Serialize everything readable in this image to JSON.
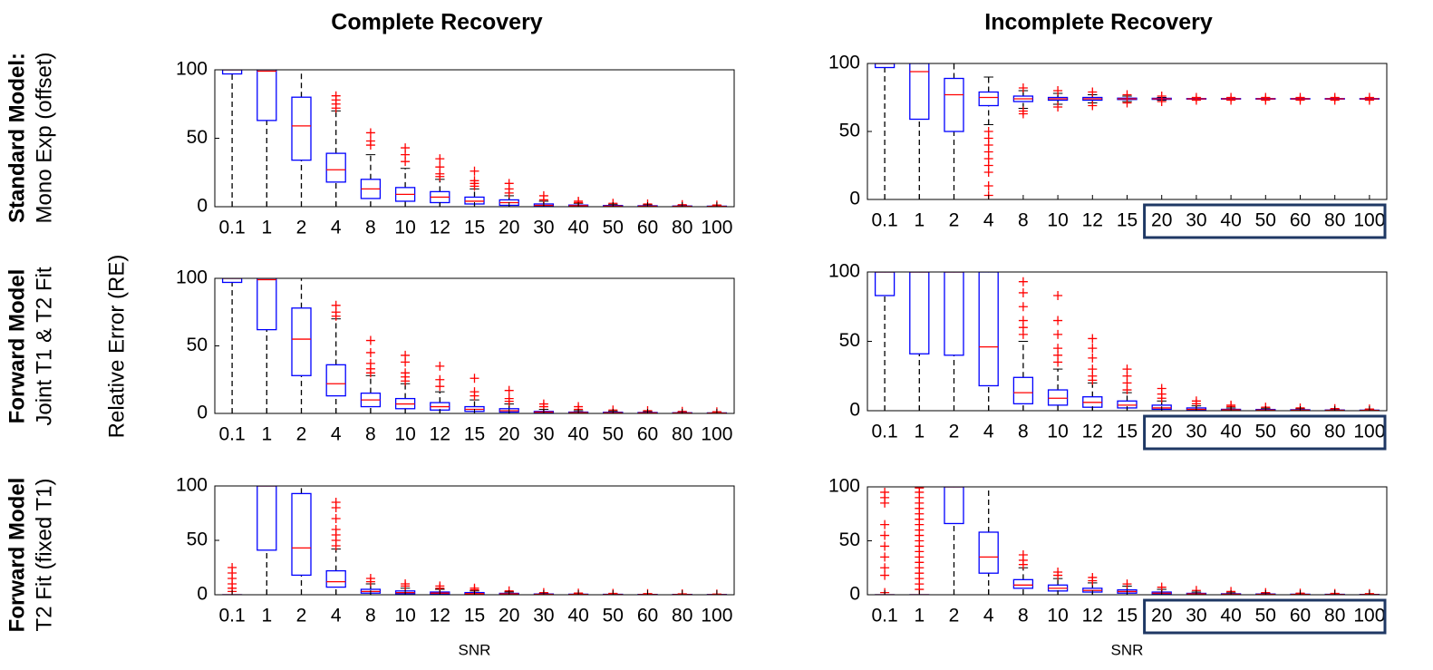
{
  "figure": {
    "column_titles": [
      "Complete Recovery",
      "Incomplete Recovery"
    ],
    "row_labels": [
      [
        "Standard Model:",
        "Mono Exp (offset)"
      ],
      [
        "Forward Model",
        "Joint T1 & T2 Fit"
      ],
      [
        "Forward Model",
        "T2 Fit (fixed T1)"
      ]
    ],
    "ylabel": "Relative Error (RE)"
  },
  "chart_data": [
    {
      "type": "box",
      "categories": [
        "0.1",
        "1",
        "2",
        "4",
        "8",
        "10",
        "12",
        "15",
        "20",
        "30",
        "40",
        "50",
        "60",
        "80",
        "100"
      ],
      "ylim": [
        0,
        100
      ],
      "yticks": [
        0,
        50,
        100
      ],
      "box_color": "#0000ff",
      "median_color": "#ff0000",
      "flier_color": "#ff0000",
      "whislo": [
        0,
        0,
        0,
        0,
        0,
        0,
        0,
        0,
        0,
        0,
        0,
        0,
        0,
        0,
        0
      ],
      "q1": [
        97,
        63,
        34,
        18,
        6,
        4,
        3,
        2,
        1,
        0.5,
        0.3,
        0.2,
        0.2,
        0.1,
        0.1
      ],
      "median": [
        100,
        99,
        59,
        27,
        13,
        9,
        7,
        4,
        3,
        1,
        0.7,
        0.5,
        0.4,
        0.3,
        0.2
      ],
      "q3": [
        100,
        100,
        80,
        39,
        20,
        14,
        11,
        7,
        5,
        2,
        1.2,
        0.9,
        0.7,
        0.5,
        0.4
      ],
      "whishi": [
        100,
        100,
        100,
        70,
        38,
        28,
        20,
        13,
        8,
        4,
        2.5,
        1.8,
        1.4,
        1,
        0.8
      ],
      "fliers": [
        [],
        [],
        [],
        [
          72,
          75,
          78,
          81
        ],
        [
          45,
          48,
          54
        ],
        [
          33,
          38,
          43
        ],
        [
          22,
          24,
          29,
          35
        ],
        [
          15,
          17,
          19,
          26
        ],
        [
          10,
          13,
          17
        ],
        [
          5,
          8
        ],
        [
          3,
          4
        ],
        [
          2.5
        ],
        [
          2
        ],
        [
          1.5
        ],
        [
          1.2
        ]
      ]
    },
    {
      "type": "box",
      "categories": [
        "0.1",
        "1",
        "2",
        "4",
        "8",
        "10",
        "12",
        "15",
        "20",
        "30",
        "40",
        "50",
        "60",
        "80",
        "100"
      ],
      "ylim": [
        0,
        100
      ],
      "yticks": [
        0,
        50,
        100
      ],
      "box_color": "#0000ff",
      "median_color": "#ff0000",
      "flier_color": "#ff0000",
      "highlight": {
        "from": "20",
        "to": "100",
        "color": "#1f3864"
      },
      "whislo": [
        0,
        0,
        0,
        55,
        67,
        70,
        71,
        72,
        73,
        73.5,
        73.5,
        73.5,
        73.5,
        73.5,
        73.5
      ],
      "q1": [
        97,
        59,
        50,
        69,
        72,
        73,
        73,
        73.5,
        73.6,
        73.8,
        73.8,
        73.8,
        73.8,
        73.8,
        73.8
      ],
      "median": [
        100,
        94,
        77,
        75,
        74,
        74,
        74,
        74,
        74,
        74,
        74,
        74,
        74,
        74,
        74
      ],
      "q3": [
        100,
        100,
        89,
        79,
        76,
        75,
        75,
        74.5,
        74.4,
        74.2,
        74.2,
        74.2,
        74.2,
        74.2,
        74.2
      ],
      "whishi": [
        100,
        100,
        100,
        90,
        80,
        78,
        77,
        76,
        75,
        74.5,
        74.5,
        74.5,
        74.5,
        74.5,
        74.5
      ],
      "fliers": [
        [],
        [],
        [],
        [
          50,
          45,
          40,
          35,
          30,
          25,
          20,
          10,
          3
        ],
        [
          63,
          65,
          82
        ],
        [
          68,
          80
        ],
        [
          69,
          79
        ],
        [
          71,
          77
        ],
        [
          72,
          76
        ],
        [
          73,
          75
        ],
        [
          73,
          75
        ],
        [
          73,
          75
        ],
        [
          73,
          75
        ],
        [
          73,
          75
        ],
        [
          73,
          75
        ]
      ]
    },
    {
      "type": "box",
      "categories": [
        "0.1",
        "1",
        "2",
        "4",
        "8",
        "10",
        "12",
        "15",
        "20",
        "30",
        "40",
        "50",
        "60",
        "80",
        "100"
      ],
      "ylim": [
        0,
        100
      ],
      "yticks": [
        0,
        50,
        100
      ],
      "box_color": "#0000ff",
      "median_color": "#ff0000",
      "flier_color": "#ff0000",
      "whislo": [
        0,
        0,
        0,
        0,
        0,
        0,
        0,
        0,
        0,
        0,
        0,
        0,
        0,
        0,
        0
      ],
      "q1": [
        97,
        62,
        28,
        13,
        5,
        3.5,
        2.5,
        1.5,
        1,
        0.5,
        0.3,
        0.2,
        0.2,
        0.1,
        0.1
      ],
      "median": [
        100,
        99,
        55,
        22,
        10,
        7,
        5,
        3,
        2,
        1,
        0.6,
        0.5,
        0.4,
        0.3,
        0.2
      ],
      "q3": [
        100,
        100,
        78,
        36,
        15,
        11,
        8,
        5,
        3.5,
        1.5,
        1,
        0.9,
        0.7,
        0.5,
        0.4
      ],
      "whishi": [
        100,
        100,
        100,
        70,
        28,
        22,
        16,
        10,
        7,
        3,
        2,
        1.8,
        1.4,
        1,
        0.8
      ],
      "fliers": [
        [],
        [],
        [],
        [
          72,
          75,
          80
        ],
        [
          30,
          33,
          37,
          45,
          54
        ],
        [
          24,
          27,
          30,
          38,
          43
        ],
        [
          20,
          25,
          35
        ],
        [
          13,
          16,
          26
        ],
        [
          9,
          11,
          17
        ],
        [
          5,
          7
        ],
        [
          3,
          5
        ],
        [
          2.5
        ],
        [
          2
        ],
        [
          1.5
        ],
        [
          1.2
        ]
      ]
    },
    {
      "type": "box",
      "categories": [
        "0.1",
        "1",
        "2",
        "4",
        "8",
        "10",
        "12",
        "15",
        "20",
        "30",
        "40",
        "50",
        "60",
        "80",
        "100"
      ],
      "ylim": [
        0,
        100
      ],
      "yticks": [
        0,
        50,
        100
      ],
      "box_color": "#0000ff",
      "median_color": "#ff0000",
      "flier_color": "#ff0000",
      "highlight": {
        "from": "20",
        "to": "100",
        "color": "#1f3864"
      },
      "whislo": [
        0,
        0,
        0,
        0,
        0,
        0,
        0,
        0,
        0,
        0,
        0,
        0,
        0,
        0,
        0
      ],
      "q1": [
        83,
        41,
        40,
        18,
        5,
        4,
        2.5,
        2,
        1,
        0.5,
        0.3,
        0.2,
        0.2,
        0.1,
        0.1
      ],
      "median": [
        100,
        100,
        100,
        46,
        13,
        9,
        6,
        4,
        2,
        1,
        0.6,
        0.5,
        0.4,
        0.3,
        0.2
      ],
      "q3": [
        100,
        100,
        100,
        100,
        24,
        15,
        10,
        7,
        4,
        2,
        1,
        0.9,
        0.7,
        0.5,
        0.4
      ],
      "whishi": [
        100,
        100,
        100,
        100,
        50,
        30,
        20,
        13,
        7,
        3.5,
        2,
        1.8,
        1.4,
        1,
        0.8
      ],
      "fliers": [
        [],
        [],
        [],
        [],
        [
          55,
          60,
          65,
          75,
          85,
          93
        ],
        [
          35,
          40,
          45,
          55,
          65,
          83
        ],
        [
          22,
          25,
          30,
          38,
          45,
          52
        ],
        [
          15,
          20,
          25,
          30
        ],
        [
          9,
          12,
          16
        ],
        [
          5,
          7
        ],
        [
          3,
          4
        ],
        [
          2.5
        ],
        [
          2
        ],
        [
          1.5
        ],
        [
          1.2
        ]
      ]
    },
    {
      "type": "box",
      "categories": [
        "0.1",
        "1",
        "2",
        "4",
        "8",
        "10",
        "12",
        "15",
        "20",
        "30",
        "40",
        "50",
        "60",
        "80",
        "100"
      ],
      "ylim": [
        0,
        100
      ],
      "yticks": [
        0,
        50,
        100
      ],
      "box_color": "#0000ff",
      "median_color": "#ff0000",
      "flier_color": "#ff0000",
      "xlabel": "SNR",
      "whislo": [
        0,
        0,
        0,
        0,
        0,
        0,
        0,
        0,
        0,
        0,
        0,
        0,
        0,
        0,
        0
      ],
      "q1": [
        0,
        41,
        18,
        7,
        1.5,
        1,
        0.7,
        0.5,
        0.4,
        0.2,
        0.1,
        0.1,
        0.1,
        0.1,
        0.1
      ],
      "median": [
        0,
        100,
        43,
        12,
        3,
        2,
        1.5,
        1,
        0.8,
        0.4,
        0.3,
        0.2,
        0.2,
        0.2,
        0.1
      ],
      "q3": [
        0,
        100,
        93,
        22,
        5,
        3.5,
        2.5,
        2,
        1.3,
        0.7,
        0.5,
        0.4,
        0.3,
        0.3,
        0.2
      ],
      "whishi": [
        0,
        100,
        100,
        42,
        10,
        6,
        5,
        3.5,
        2.5,
        1.3,
        1,
        0.8,
        0.6,
        0.5,
        0.4
      ],
      "fliers": [
        [
          3,
          6,
          10,
          15,
          20,
          25
        ],
        [],
        [],
        [
          45,
          50,
          55,
          60,
          70,
          80,
          85
        ],
        [
          12,
          15
        ],
        [
          8,
          10
        ],
        [
          6,
          8
        ],
        [
          4.5,
          6
        ],
        [
          3.5
        ],
        [
          2
        ],
        [
          1.5
        ],
        [
          1.2
        ],
        [
          1
        ],
        [
          0.8
        ],
        [
          0.6
        ]
      ]
    },
    {
      "type": "box",
      "categories": [
        "0.1",
        "1",
        "2",
        "4",
        "8",
        "10",
        "12",
        "15",
        "20",
        "30",
        "40",
        "50",
        "60",
        "80",
        "100"
      ],
      "ylim": [
        0,
        100
      ],
      "yticks": [
        0,
        50,
        100
      ],
      "box_color": "#0000ff",
      "median_color": "#ff0000",
      "flier_color": "#ff0000",
      "xlabel": "SNR",
      "highlight": {
        "from": "20",
        "to": "100",
        "color": "#1f3864"
      },
      "whislo": [
        0,
        0,
        0,
        0,
        0,
        0,
        0,
        0,
        0,
        0,
        0,
        0,
        0,
        0,
        0
      ],
      "q1": [
        0,
        0,
        66,
        20,
        6,
        3.5,
        2.5,
        1.5,
        1,
        0.4,
        0.3,
        0.2,
        0.2,
        0.1,
        0.1
      ],
      "median": [
        0,
        0,
        100,
        35,
        9,
        6,
        4,
        3,
        1.5,
        0.8,
        0.5,
        0.4,
        0.3,
        0.2,
        0.2
      ],
      "q3": [
        0,
        0,
        100,
        58,
        14,
        9,
        6,
        4.5,
        2.5,
        1.3,
        0.9,
        0.7,
        0.5,
        0.4,
        0.3
      ],
      "whishi": [
        0,
        0,
        100,
        100,
        25,
        15,
        11,
        8,
        5,
        2.5,
        1.8,
        1.4,
        1,
        0.8,
        0.6
      ],
      "fliers": [
        [
          2,
          18,
          25,
          35,
          45,
          55,
          65,
          85,
          90,
          95
        ],
        [
          5,
          10,
          15,
          20,
          25,
          30,
          35,
          40,
          45,
          50,
          55,
          60,
          65,
          70,
          75,
          80,
          85,
          90,
          95,
          99
        ],
        [],
        [],
        [
          28,
          32,
          37
        ],
        [
          18,
          21
        ],
        [
          13,
          16
        ],
        [
          10
        ],
        [
          7
        ],
        [
          4
        ],
        [
          3
        ],
        [
          2
        ],
        [
          1.5
        ],
        [
          1.2
        ],
        [
          1
        ]
      ]
    }
  ]
}
